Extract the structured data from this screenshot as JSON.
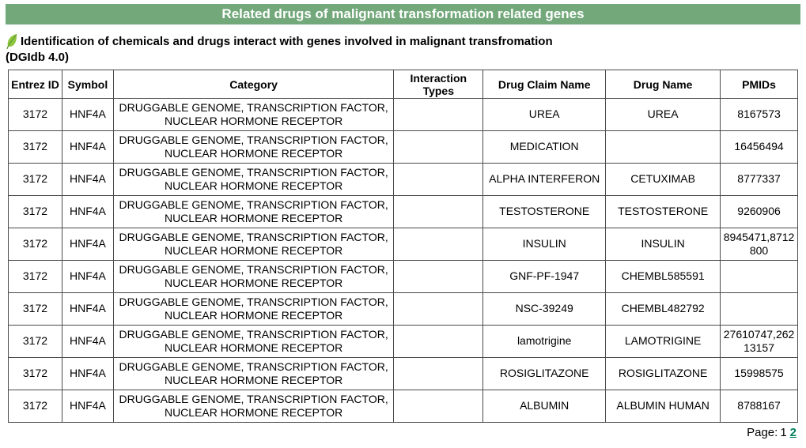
{
  "title_bar": {
    "title": "Related drugs of malignant transformation related genes",
    "background_color": "#72a87a",
    "text_color": "#ffffff"
  },
  "subtitle": {
    "line1": "Identification of chemicals and drugs interact with genes involved in malignant transfromation",
    "line2": "(DGIdb 4.0)",
    "leaf_icon_color": "#8dc63f"
  },
  "table": {
    "headers": [
      "Entrez ID",
      "Symbol",
      "Category",
      "Interaction Types",
      "Drug Claim Name",
      "Drug Name",
      "PMIDs"
    ],
    "column_keys": [
      "entrez_id",
      "symbol",
      "category",
      "interaction_types",
      "drug_claim_name",
      "drug_name",
      "pmids"
    ],
    "rows": [
      {
        "entrez_id": "3172",
        "symbol": "HNF4A",
        "category": "DRUGGABLE GENOME, TRANSCRIPTION FACTOR, NUCLEAR HORMONE RECEPTOR",
        "interaction_types": "",
        "drug_claim_name": "UREA",
        "drug_name": "UREA",
        "pmids": "8167573"
      },
      {
        "entrez_id": "3172",
        "symbol": "HNF4A",
        "category": "DRUGGABLE GENOME, TRANSCRIPTION FACTOR, NUCLEAR HORMONE RECEPTOR",
        "interaction_types": "",
        "drug_claim_name": "MEDICATION",
        "drug_name": "",
        "pmids": "16456494"
      },
      {
        "entrez_id": "3172",
        "symbol": "HNF4A",
        "category": "DRUGGABLE GENOME, TRANSCRIPTION FACTOR, NUCLEAR HORMONE RECEPTOR",
        "interaction_types": "",
        "drug_claim_name": "ALPHA INTERFERON",
        "drug_name": "CETUXIMAB",
        "pmids": "8777337"
      },
      {
        "entrez_id": "3172",
        "symbol": "HNF4A",
        "category": "DRUGGABLE GENOME, TRANSCRIPTION FACTOR, NUCLEAR HORMONE RECEPTOR",
        "interaction_types": "",
        "drug_claim_name": "TESTOSTERONE",
        "drug_name": "TESTOSTERONE",
        "pmids": "9260906"
      },
      {
        "entrez_id": "3172",
        "symbol": "HNF4A",
        "category": "DRUGGABLE GENOME, TRANSCRIPTION FACTOR, NUCLEAR HORMONE RECEPTOR",
        "interaction_types": "",
        "drug_claim_name": "INSULIN",
        "drug_name": "INSULIN",
        "pmids": "8945471,8712800"
      },
      {
        "entrez_id": "3172",
        "symbol": "HNF4A",
        "category": "DRUGGABLE GENOME, TRANSCRIPTION FACTOR, NUCLEAR HORMONE RECEPTOR",
        "interaction_types": "",
        "drug_claim_name": "GNF-PF-1947",
        "drug_name": "CHEMBL585591",
        "pmids": ""
      },
      {
        "entrez_id": "3172",
        "symbol": "HNF4A",
        "category": "DRUGGABLE GENOME, TRANSCRIPTION FACTOR, NUCLEAR HORMONE RECEPTOR",
        "interaction_types": "",
        "drug_claim_name": "NSC-39249",
        "drug_name": "CHEMBL482792",
        "pmids": ""
      },
      {
        "entrez_id": "3172",
        "symbol": "HNF4A",
        "category": "DRUGGABLE GENOME, TRANSCRIPTION FACTOR, NUCLEAR HORMONE RECEPTOR",
        "interaction_types": "",
        "drug_claim_name": "lamotrigine",
        "drug_name": "LAMOTRIGINE",
        "pmids": "27610747,26213157"
      },
      {
        "entrez_id": "3172",
        "symbol": "HNF4A",
        "category": "DRUGGABLE GENOME, TRANSCRIPTION FACTOR, NUCLEAR HORMONE RECEPTOR",
        "interaction_types": "",
        "drug_claim_name": "ROSIGLITAZONE",
        "drug_name": "ROSIGLITAZONE",
        "pmids": "15998575"
      },
      {
        "entrez_id": "3172",
        "symbol": "HNF4A",
        "category": "DRUGGABLE GENOME, TRANSCRIPTION FACTOR, NUCLEAR HORMONE RECEPTOR",
        "interaction_types": "",
        "drug_claim_name": "ALBUMIN",
        "drug_name": "ALBUMIN HUMAN",
        "pmids": "8788167"
      }
    ]
  },
  "pagination": {
    "label": "Page:",
    "current_page": "1",
    "other_pages": [
      "2"
    ],
    "link_color": "#008060"
  }
}
